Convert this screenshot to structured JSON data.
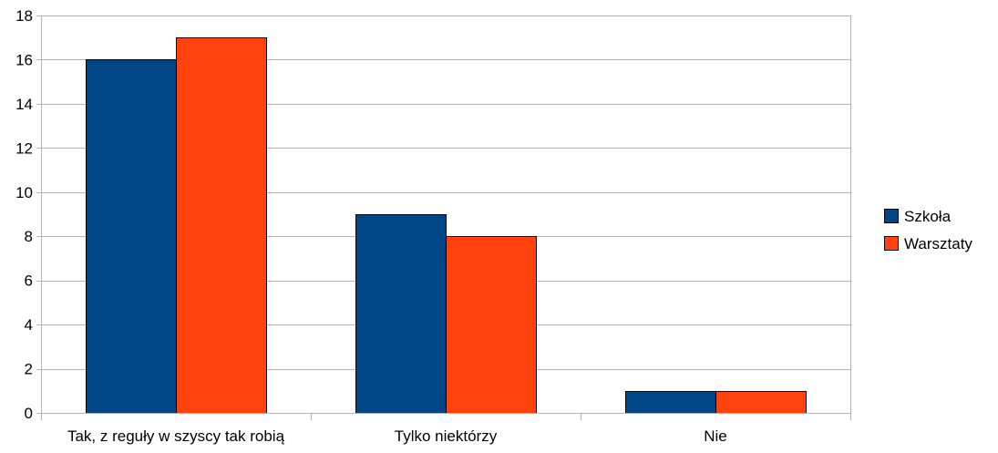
{
  "chart_data": {
    "type": "bar",
    "title": "",
    "xlabel": "",
    "ylabel": "",
    "categories": [
      "Tak, z reguły w szyscy tak robią",
      "Tylko niektórzy",
      "Nie"
    ],
    "series": [
      {
        "name": "Szkoła",
        "values": [
          16,
          9,
          1
        ],
        "color": "#004586"
      },
      {
        "name": "Warsztaty",
        "values": [
          17,
          8,
          1
        ],
        "color": "#ff420e"
      }
    ],
    "ylim": [
      0,
      18
    ],
    "yticks": [
      0,
      2,
      4,
      6,
      8,
      10,
      12,
      14,
      16,
      18
    ],
    "grid": true,
    "legend_position": "right"
  }
}
